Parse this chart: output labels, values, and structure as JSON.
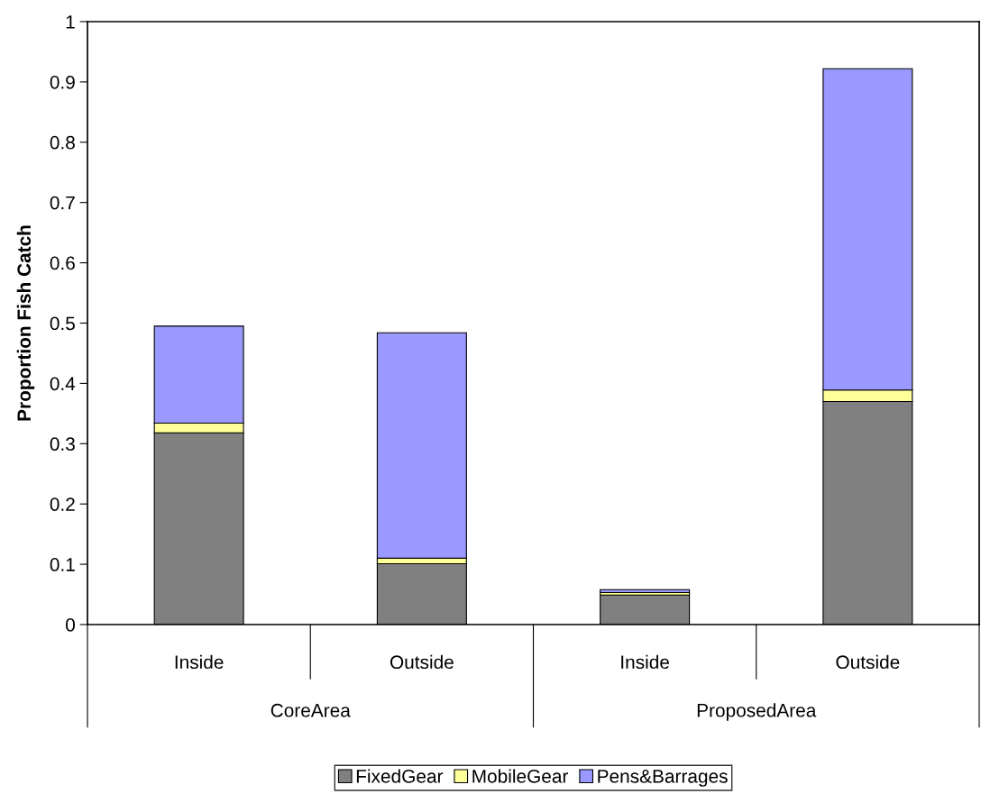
{
  "chart_data": {
    "type": "bar",
    "ylabel": "Proportion Fish Catch",
    "stacked": true,
    "categories": [
      "Inside",
      "Outside",
      "Inside",
      "Outside"
    ],
    "annotations": [
      "CoreArea",
      "ProposedArea"
    ],
    "series": [
      {
        "name": "FixedGear",
        "color": "#808080",
        "values": [
          0.318,
          0.101,
          0.049,
          0.37
        ]
      },
      {
        "name": "MobileGear",
        "color": "#ffff99",
        "values": [
          0.016,
          0.009,
          0.004,
          0.019
        ]
      },
      {
        "name": "Pens&Barrages",
        "color": "#9999ff",
        "values": [
          0.161,
          0.374,
          0.005,
          0.533
        ]
      }
    ],
    "ylim": [
      0,
      1
    ],
    "yticks": [
      0,
      0.1,
      0.2,
      0.3,
      0.4,
      0.5,
      0.6,
      0.7,
      0.8,
      0.9,
      1
    ],
    "grid": false,
    "legend": "bottom"
  }
}
